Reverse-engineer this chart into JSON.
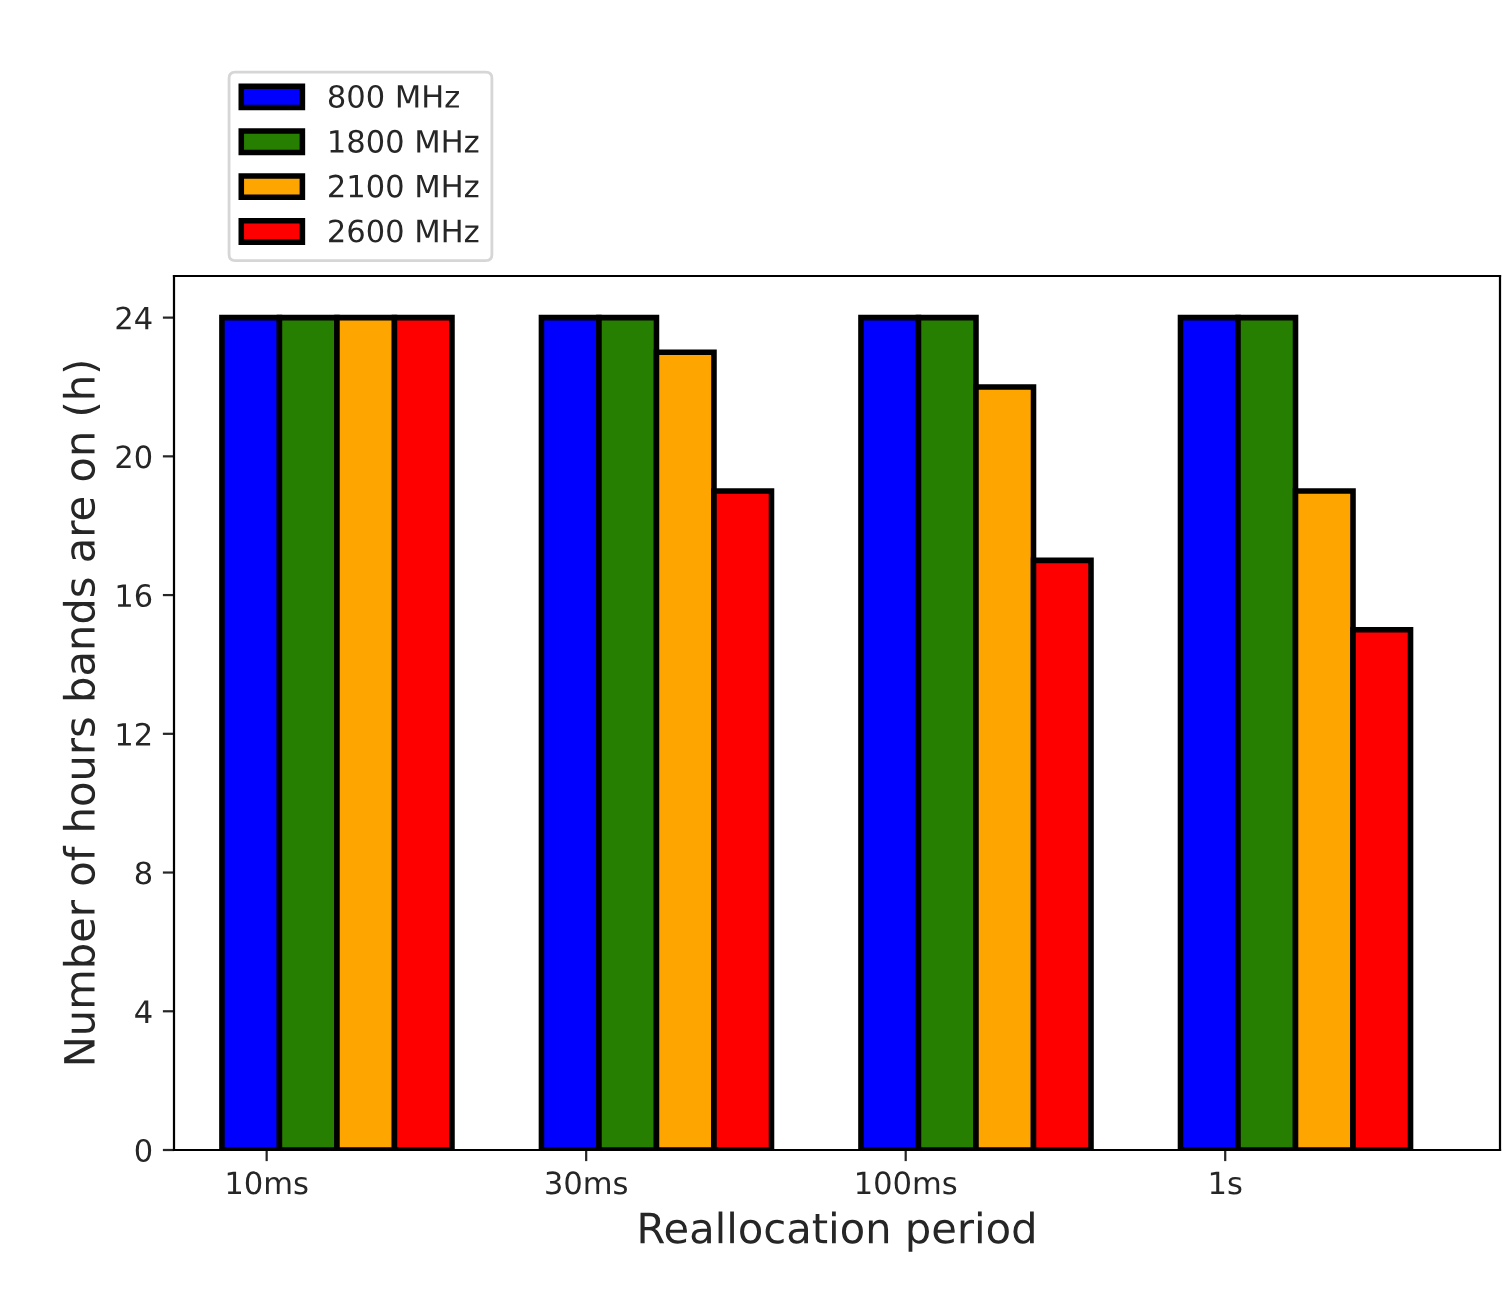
{
  "chart_data": {
    "type": "bar",
    "xlabel": "Reallocation period",
    "ylabel": "Number of hours bands are on (h)",
    "categories": [
      "10ms",
      "30ms",
      "100ms",
      "1s"
    ],
    "series": [
      {
        "name": "800 MHz",
        "color": "#0000ff",
        "values": [
          24,
          24,
          24,
          24
        ]
      },
      {
        "name": "1800 MHz",
        "color": "#267f00",
        "values": [
          24,
          24,
          24,
          24
        ]
      },
      {
        "name": "2100 MHz",
        "color": "#ffa500",
        "values": [
          24,
          23,
          22,
          19
        ]
      },
      {
        "name": "2600 MHz",
        "color": "#ff0000",
        "values": [
          24,
          19,
          17,
          15
        ]
      }
    ],
    "ylim": [
      0,
      25.2
    ],
    "yticks": [
      0,
      4,
      8,
      12,
      16,
      20,
      24
    ],
    "grid": false,
    "legend": "top left"
  }
}
